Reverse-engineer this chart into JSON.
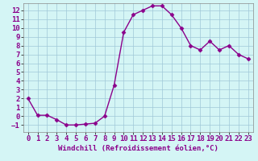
{
  "x": [
    0,
    1,
    2,
    3,
    4,
    5,
    6,
    7,
    8,
    9,
    10,
    11,
    12,
    13,
    14,
    15,
    16,
    17,
    18,
    19,
    20,
    21,
    22,
    23
  ],
  "y": [
    2.0,
    0.1,
    0.1,
    -0.4,
    -1.0,
    -1.0,
    -0.9,
    -0.8,
    0.0,
    3.5,
    9.5,
    11.5,
    12.0,
    12.5,
    12.5,
    11.5,
    10.0,
    8.0,
    7.5,
    8.5,
    7.5,
    8.0,
    7.0,
    6.5
  ],
  "line_color": "#8B008B",
  "marker": "D",
  "marker_size": 2.5,
  "bg_color": "#d4f5f5",
  "grid_color": "#a0c8d8",
  "xlabel": "Windchill (Refroidissement éolien,°C)",
  "xlim": [
    -0.5,
    23.5
  ],
  "ylim": [
    -1.8,
    12.8
  ],
  "yticks": [
    -1,
    0,
    1,
    2,
    3,
    4,
    5,
    6,
    7,
    8,
    9,
    10,
    11,
    12
  ],
  "xticks": [
    0,
    1,
    2,
    3,
    4,
    5,
    6,
    7,
    8,
    9,
    10,
    11,
    12,
    13,
    14,
    15,
    16,
    17,
    18,
    19,
    20,
    21,
    22,
    23
  ],
  "xlabel_fontsize": 6.5,
  "tick_fontsize": 6.5,
  "line_width": 1.0
}
